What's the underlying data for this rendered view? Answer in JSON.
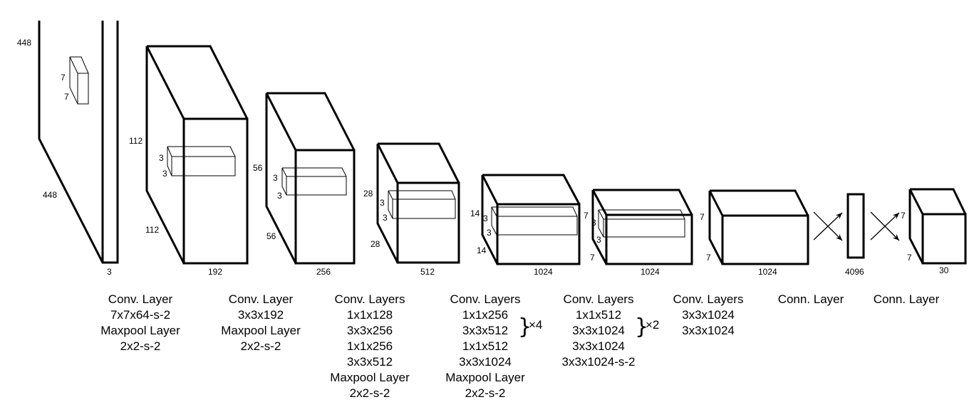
{
  "dimensions": {
    "input": {
      "height": "448",
      "width": "448",
      "depth": "3",
      "kernel_h": "7",
      "kernel_w": "7"
    },
    "layer1": {
      "height": "112",
      "width": "112",
      "depth": "192",
      "kernel_h": "3",
      "kernel_w": "3"
    },
    "layer2": {
      "height": "56",
      "width": "56",
      "depth": "256",
      "kernel_h": "3",
      "kernel_w": "3"
    },
    "layer3": {
      "height": "28",
      "width": "28",
      "depth": "512",
      "kernel_h": "3",
      "kernel_w": "3"
    },
    "layer4": {
      "height": "14",
      "width": "14",
      "depth": "1024",
      "kernel_h": "3",
      "kernel_w": "3"
    },
    "layer5": {
      "height": "7",
      "width": "7",
      "depth": "1024",
      "kernel_h": "3",
      "kernel_w": "3"
    },
    "layer6": {
      "height": "7",
      "width": "7",
      "depth": "1024"
    },
    "fc1": {
      "depth": "4096"
    },
    "output": {
      "height": "7",
      "width": "7",
      "depth": "30"
    }
  },
  "captions": [
    {
      "lines": [
        "Conv. Layer",
        "7x7x64-s-2",
        "Maxpool Layer",
        "2x2-s-2"
      ]
    },
    {
      "lines": [
        "Conv. Layer",
        "3x3x192",
        "Maxpool Layer",
        "2x2-s-2"
      ]
    },
    {
      "lines": [
        "Conv. Layers",
        "1x1x128",
        "3x3x256",
        "1x1x256",
        "3x3x512",
        "Maxpool Layer",
        "2x2-s-2"
      ]
    },
    {
      "lines": [
        "Conv. Layers",
        "1x1x256",
        "3x3x512",
        "1x1x512",
        "3x3x1024",
        "Maxpool Layer",
        "2x2-s-2"
      ],
      "repeat": "×4"
    },
    {
      "lines": [
        "Conv. Layers",
        "1x1x512",
        "3x3x1024",
        "3x3x1024",
        "3x3x1024-s-2"
      ],
      "repeat": "×2"
    },
    {
      "lines": [
        "Conv. Layers",
        "3x3x1024",
        "3x3x1024"
      ]
    },
    {
      "lines": [
        "Conn. Layer"
      ]
    },
    {
      "lines": [
        "Conn. Layer"
      ]
    }
  ]
}
